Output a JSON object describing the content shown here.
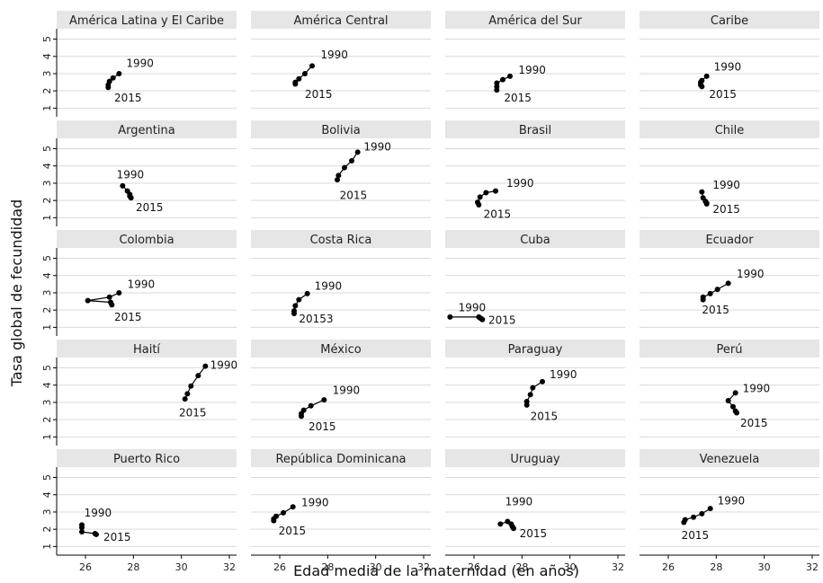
{
  "chart_data": {
    "type": "line",
    "xlabel": "Edad media de la maternidad (en años)",
    "ylabel": "Tasa global de fecundidad",
    "xlim": [
      24.8,
      32.3
    ],
    "ylim": [
      0.5,
      5.6
    ],
    "xticks": [
      "26",
      "28",
      "30",
      "32"
    ],
    "yticks": [
      "1",
      "2",
      "3",
      "4",
      "5"
    ],
    "grid": true,
    "line_color": "#000000",
    "strip_color": "#e6e6e6",
    "panels": [
      {
        "name": "América Latina y El Caribe",
        "x": [
          27.4,
          27.15,
          27.0,
          26.95,
          26.95
        ],
        "y": [
          3.0,
          2.75,
          2.55,
          2.35,
          2.2
        ],
        "labels": [
          {
            "text": "1990",
            "x": 27.7,
            "y": 3.6
          },
          {
            "text": "2015",
            "x": 27.2,
            "y": 1.6
          }
        ]
      },
      {
        "name": "América Central",
        "x": [
          27.35,
          27.05,
          26.8,
          26.65,
          26.65
        ],
        "y": [
          3.45,
          3.0,
          2.7,
          2.5,
          2.4
        ],
        "labels": [
          {
            "text": "1990",
            "x": 27.7,
            "y": 4.1
          },
          {
            "text": "2015",
            "x": 27.05,
            "y": 1.8
          }
        ]
      },
      {
        "name": "América del Sur",
        "x": [
          27.5,
          27.2,
          26.95,
          26.95,
          26.95
        ],
        "y": [
          2.85,
          2.65,
          2.45,
          2.25,
          2.05
        ],
        "labels": [
          {
            "text": "1990",
            "x": 27.85,
            "y": 3.2
          },
          {
            "text": "2015",
            "x": 27.25,
            "y": 1.6
          }
        ]
      },
      {
        "name": "Caribe",
        "x": [
          27.6,
          27.4,
          27.35,
          27.35,
          27.4
        ],
        "y": [
          2.85,
          2.6,
          2.5,
          2.35,
          2.25
        ],
        "labels": [
          {
            "text": "1990",
            "x": 27.9,
            "y": 3.4
          },
          {
            "text": "2015",
            "x": 27.7,
            "y": 1.8
          }
        ]
      },
      {
        "name": "Argentina",
        "x": [
          27.55,
          27.75,
          27.85,
          27.85,
          27.9
        ],
        "y": [
          2.85,
          2.55,
          2.35,
          2.25,
          2.15
        ],
        "labels": [
          {
            "text": "1990",
            "x": 27.3,
            "y": 3.5
          },
          {
            "text": "2015",
            "x": 28.1,
            "y": 1.6
          }
        ]
      },
      {
        "name": "Bolivia",
        "x": [
          29.25,
          29.0,
          28.7,
          28.45,
          28.4
        ],
        "y": [
          4.8,
          4.3,
          3.9,
          3.45,
          3.2
        ],
        "labels": [
          {
            "text": "1990",
            "x": 29.5,
            "y": 5.1
          },
          {
            "text": "2015",
            "x": 28.5,
            "y": 2.3
          }
        ]
      },
      {
        "name": "Brasil",
        "x": [
          26.9,
          26.5,
          26.25,
          26.15,
          26.2
        ],
        "y": [
          2.55,
          2.45,
          2.2,
          1.9,
          1.75
        ],
        "labels": [
          {
            "text": "1990",
            "x": 27.35,
            "y": 3.0
          },
          {
            "text": "2015",
            "x": 26.4,
            "y": 1.2
          }
        ]
      },
      {
        "name": "Chile",
        "x": [
          27.4,
          27.45,
          27.55,
          27.6,
          27.6
        ],
        "y": [
          2.5,
          2.15,
          1.95,
          1.85,
          1.8
        ],
        "labels": [
          {
            "text": "1990",
            "x": 27.85,
            "y": 2.9
          },
          {
            "text": "2015",
            "x": 27.85,
            "y": 1.5
          }
        ]
      },
      {
        "name": "Colombia",
        "x": [
          27.4,
          27.0,
          26.1,
          27.05,
          27.1
        ],
        "y": [
          3.0,
          2.75,
          2.55,
          2.45,
          2.3
        ],
        "labels": [
          {
            "text": "1990",
            "x": 27.75,
            "y": 3.5
          },
          {
            "text": "2015",
            "x": 27.2,
            "y": 1.6
          }
        ]
      },
      {
        "name": "Costa Rica",
        "x": [
          27.15,
          26.8,
          26.65,
          26.6,
          26.6
        ],
        "y": [
          2.95,
          2.6,
          2.25,
          1.95,
          1.8
        ],
        "labels": [
          {
            "text": "1990",
            "x": 27.45,
            "y": 3.4
          },
          {
            "text": "20153",
            "x": 26.8,
            "y": 1.5
          }
        ]
      },
      {
        "name": "Cuba",
        "x": [
          25.0,
          26.2,
          26.25,
          26.3,
          26.35
        ],
        "y": [
          1.6,
          1.6,
          1.55,
          1.5,
          1.45
        ],
        "labels": [
          {
            "text": "1990",
            "x": 25.35,
            "y": 2.15
          },
          {
            "text": "2015",
            "x": 26.6,
            "y": 1.4
          }
        ]
      },
      {
        "name": "Ecuador",
        "x": [
          28.5,
          28.05,
          27.75,
          27.45,
          27.45
        ],
        "y": [
          3.55,
          3.2,
          2.95,
          2.75,
          2.6
        ],
        "labels": [
          {
            "text": "1990",
            "x": 28.85,
            "y": 4.1
          },
          {
            "text": "2015",
            "x": 27.4,
            "y": 2.0
          }
        ]
      },
      {
        "name": "Haití",
        "x": [
          31.0,
          30.7,
          30.4,
          30.25,
          30.15
        ],
        "y": [
          5.1,
          4.55,
          3.95,
          3.5,
          3.2
        ],
        "labels": [
          {
            "text": "1990",
            "x": 31.2,
            "y": 5.15
          },
          {
            "text": "2015",
            "x": 29.9,
            "y": 2.4
          }
        ]
      },
      {
        "name": "México",
        "x": [
          27.85,
          27.3,
          27.0,
          26.9,
          26.9
        ],
        "y": [
          3.15,
          2.8,
          2.55,
          2.35,
          2.2
        ],
        "labels": [
          {
            "text": "1990",
            "x": 28.2,
            "y": 3.7
          },
          {
            "text": "2015",
            "x": 27.2,
            "y": 1.6
          }
        ]
      },
      {
        "name": "Paraguay",
        "x": [
          28.85,
          28.45,
          28.35,
          28.2,
          28.2
        ],
        "y": [
          4.2,
          3.85,
          3.45,
          3.05,
          2.85
        ],
        "labels": [
          {
            "text": "1990",
            "x": 29.15,
            "y": 4.6
          },
          {
            "text": "2015",
            "x": 28.35,
            "y": 2.2
          }
        ]
      },
      {
        "name": "Perú",
        "x": [
          28.8,
          28.5,
          28.7,
          28.8,
          28.85
        ],
        "y": [
          3.55,
          3.1,
          2.75,
          2.5,
          2.4
        ],
        "labels": [
          {
            "text": "1990",
            "x": 29.1,
            "y": 3.8
          },
          {
            "text": "2015",
            "x": 29.0,
            "y": 1.8
          }
        ]
      },
      {
        "name": "Puerto Rico",
        "x": [
          25.85,
          25.85,
          25.85,
          26.4,
          26.45
        ],
        "y": [
          2.25,
          2.1,
          1.85,
          1.75,
          1.7
        ],
        "labels": [
          {
            "text": "1990",
            "x": 25.95,
            "y": 2.95
          },
          {
            "text": "2015",
            "x": 26.75,
            "y": 1.55
          }
        ]
      },
      {
        "name": "República Dominicana",
        "x": [
          26.55,
          26.15,
          25.85,
          25.75,
          25.75
        ],
        "y": [
          3.3,
          2.95,
          2.75,
          2.6,
          2.5
        ],
        "labels": [
          {
            "text": "1990",
            "x": 26.9,
            "y": 3.55
          },
          {
            "text": "2015",
            "x": 25.95,
            "y": 1.9
          }
        ]
      },
      {
        "name": "Uruguay",
        "x": [
          27.1,
          27.4,
          27.55,
          27.6,
          27.65
        ],
        "y": [
          2.3,
          2.45,
          2.3,
          2.15,
          2.05
        ],
        "labels": [
          {
            "text": "1990",
            "x": 27.3,
            "y": 3.6
          },
          {
            "text": "2015",
            "x": 27.9,
            "y": 1.75
          }
        ]
      },
      {
        "name": "Venezuela",
        "x": [
          27.75,
          27.4,
          27.05,
          26.7,
          26.65
        ],
        "y": [
          3.2,
          2.9,
          2.7,
          2.55,
          2.4
        ],
        "labels": [
          {
            "text": "1990",
            "x": 28.05,
            "y": 3.65
          },
          {
            "text": "2015",
            "x": 26.55,
            "y": 1.65
          }
        ]
      }
    ]
  }
}
